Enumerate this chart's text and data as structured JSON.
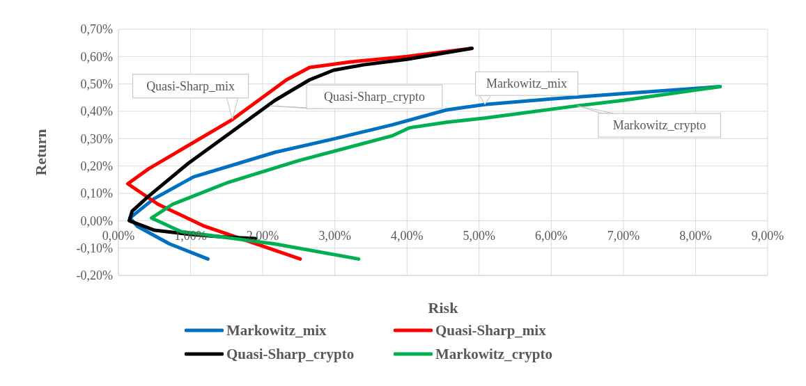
{
  "chart_data": {
    "type": "line",
    "xlabel": "Risk",
    "ylabel": "Return",
    "xlim": [
      0,
      9
    ],
    "ylim": [
      -0.2,
      0.7
    ],
    "xticks": [
      {
        "value": 0,
        "label": "0,00%"
      },
      {
        "value": 1,
        "label": "1,00%"
      },
      {
        "value": 2,
        "label": "2,00%"
      },
      {
        "value": 3,
        "label": "3,00%"
      },
      {
        "value": 4,
        "label": "4,00%"
      },
      {
        "value": 5,
        "label": "5,00%"
      },
      {
        "value": 6,
        "label": "6,00%"
      },
      {
        "value": 7,
        "label": "7,00%"
      },
      {
        "value": 8,
        "label": "8,00%"
      },
      {
        "value": 9,
        "label": "9,00%"
      }
    ],
    "yticks": [
      {
        "value": -0.2,
        "label": "-0,20%"
      },
      {
        "value": -0.1,
        "label": "-0,10%"
      },
      {
        "value": 0,
        "label": "0,00%"
      },
      {
        "value": 0.1,
        "label": "0,10%"
      },
      {
        "value": 0.2,
        "label": "0,20%"
      },
      {
        "value": 0.3,
        "label": "0,30%"
      },
      {
        "value": 0.4,
        "label": "0,40%"
      },
      {
        "value": 0.5,
        "label": "0,50%"
      },
      {
        "value": 0.6,
        "label": "0,60%"
      },
      {
        "value": 0.7,
        "label": "0,70%"
      }
    ],
    "grid": true,
    "legend": "bottom",
    "marker": "none",
    "line_style": "solid",
    "series": [
      {
        "name": "Markowitz_mix",
        "color": "#0070c0",
        "x": [
          1.24,
          0.71,
          0.26,
          0.16,
          0.49,
          1.04,
          2.17,
          3.0,
          3.79,
          4.55,
          5.08,
          6.0,
          7.0,
          8.34
        ],
        "values": [
          -0.14,
          -0.085,
          -0.02,
          0.01,
          0.08,
          0.16,
          0.25,
          0.3,
          0.35,
          0.405,
          0.425,
          0.445,
          0.465,
          0.49
        ]
      },
      {
        "name": "Quasi-Sharp_mix",
        "color": "#ff0000",
        "x": [
          2.52,
          1.19,
          0.55,
          0.13,
          0.42,
          1.58,
          2.33,
          2.65,
          3.2,
          4.0,
          4.9
        ],
        "values": [
          -0.14,
          -0.02,
          0.06,
          0.135,
          0.19,
          0.37,
          0.515,
          0.56,
          0.58,
          0.6,
          0.63
        ]
      },
      {
        "name": "Quasi-Sharp_crypto",
        "color": "#000000",
        "x": [
          1.9,
          1.5,
          1.0,
          0.5,
          0.15,
          0.19,
          0.42,
          0.97,
          1.65,
          2.17,
          2.65,
          2.98,
          3.4,
          4.0,
          4.9
        ],
        "values": [
          -0.065,
          -0.06,
          -0.05,
          -0.035,
          0.0,
          0.035,
          0.09,
          0.21,
          0.34,
          0.44,
          0.515,
          0.55,
          0.57,
          0.59,
          0.63
        ]
      },
      {
        "name": "Markowitz_crypto",
        "color": "#00b050",
        "x": [
          3.33,
          2.17,
          0.87,
          0.46,
          0.75,
          1.52,
          2.5,
          3.79,
          4.04,
          4.55,
          5.08,
          6.36,
          7.0,
          8.34
        ],
        "values": [
          -0.14,
          -0.085,
          -0.04,
          0.01,
          0.06,
          0.14,
          0.22,
          0.31,
          0.34,
          0.36,
          0.375,
          0.42,
          0.44,
          0.49
        ]
      }
    ],
    "annotations": [
      {
        "text": "Quasi-Sharp_mix",
        "x": 1.58,
        "y": 0.37
      },
      {
        "text": "Quasi-Sharp_crypto",
        "x": 2.1,
        "y": 0.42
      },
      {
        "text": "Markowitz_mix",
        "x": 5.08,
        "y": 0.425
      },
      {
        "text": "Markowitz_crypto",
        "x": 6.36,
        "y": 0.42
      }
    ]
  }
}
